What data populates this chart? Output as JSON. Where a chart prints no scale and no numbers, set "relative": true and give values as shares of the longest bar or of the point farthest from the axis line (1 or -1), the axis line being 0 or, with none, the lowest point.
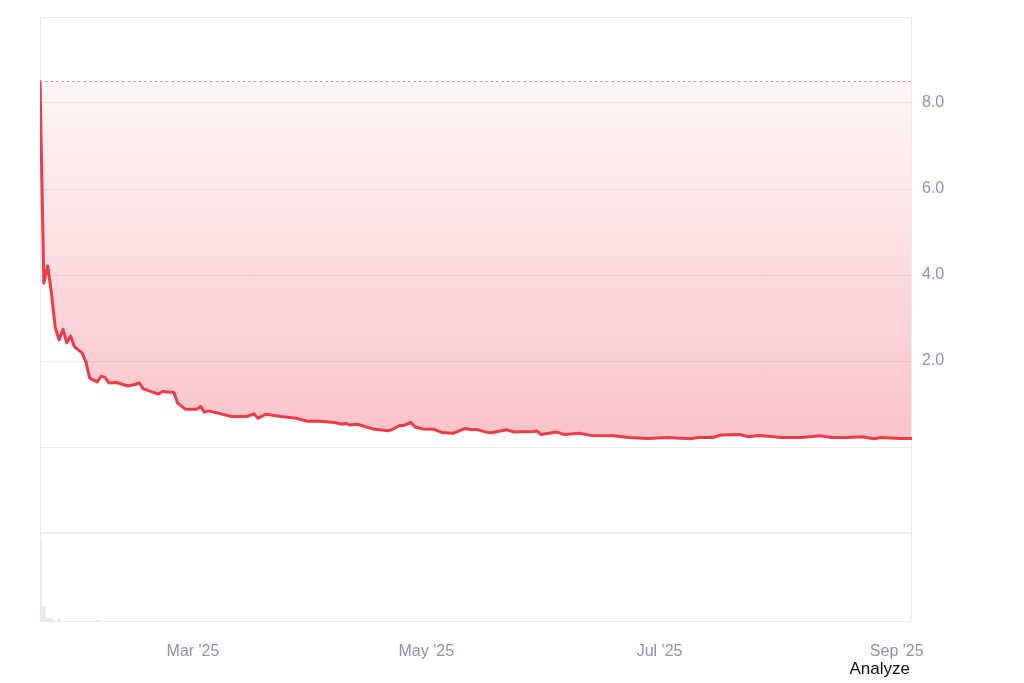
{
  "chart_data": [
    {
      "type": "line",
      "xlim": [
        "2025-01-20",
        "2025-09-05"
      ],
      "ylim": [
        -2,
        10
      ],
      "yticks": [
        {
          "value": 0,
          "label": null
        },
        {
          "value": 2,
          "label": "2.0"
        },
        {
          "value": 4,
          "label": "4.0"
        },
        {
          "value": 6,
          "label": "6.0"
        },
        {
          "value": 8,
          "label": "8.0"
        }
      ],
      "tick_labels": "y",
      "grid": "y",
      "x": [
        "2025-01-20",
        "2025-01-21",
        "2025-01-22",
        "2025-01-23",
        "2025-01-24",
        "2025-01-25",
        "2025-01-26",
        "2025-01-27",
        "2025-01-28",
        "2025-01-29",
        "2025-01-31",
        "2025-02-01",
        "2025-02-02",
        "2025-02-04",
        "2025-02-05",
        "2025-02-06",
        "2025-02-07",
        "2025-02-09",
        "2025-02-12",
        "2025-02-14",
        "2025-02-15",
        "2025-02-16",
        "2025-02-20",
        "2025-02-21",
        "2025-02-24",
        "2025-02-25",
        "2025-02-27",
        "2025-03-02",
        "2025-03-03",
        "2025-03-04",
        "2025-03-05",
        "2025-03-08",
        "2025-03-11",
        "2025-03-15",
        "2025-03-17",
        "2025-03-18",
        "2025-03-20",
        "2025-03-24",
        "2025-03-28",
        "2025-03-31",
        "2025-04-03",
        "2025-04-07",
        "2025-04-09",
        "2025-04-10",
        "2025-04-11",
        "2025-04-13",
        "2025-04-17",
        "2025-04-21",
        "2025-04-22",
        "2025-04-24",
        "2025-04-25",
        "2025-04-27",
        "2025-04-28",
        "2025-04-30",
        "2025-05-03",
        "2025-05-05",
        "2025-05-08",
        "2025-05-09",
        "2025-05-11",
        "2025-05-13",
        "2025-05-14",
        "2025-05-17",
        "2025-05-18",
        "2025-05-22",
        "2025-05-24",
        "2025-05-29",
        "2025-05-30",
        "2025-05-31",
        "2025-06-04",
        "2025-06-06",
        "2025-06-10",
        "2025-06-13",
        "2025-06-19",
        "2025-06-23",
        "2025-06-28",
        "2025-07-03",
        "2025-07-09",
        "2025-07-11",
        "2025-07-15",
        "2025-07-17",
        "2025-07-22",
        "2025-07-24",
        "2025-07-27",
        "2025-08-02",
        "2025-08-07",
        "2025-08-12",
        "2025-08-15",
        "2025-08-19",
        "2025-08-23",
        "2025-08-26",
        "2025-08-28",
        "2025-09-02",
        "2025-09-05"
      ],
      "series": [
        {
          "color": "#ef3a4a",
          "values": [
            8.5,
            3.81,
            4.21,
            3.58,
            2.77,
            2.49,
            2.74,
            2.42,
            2.58,
            2.33,
            2.19,
            1.98,
            1.6,
            1.51,
            1.65,
            1.62,
            1.49,
            1.5,
            1.42,
            1.46,
            1.49,
            1.35,
            1.23,
            1.29,
            1.27,
            1.02,
            0.88,
            0.88,
            0.94,
            0.81,
            0.84,
            0.78,
            0.71,
            0.71,
            0.77,
            0.67,
            0.76,
            0.71,
            0.67,
            0.6,
            0.6,
            0.57,
            0.53,
            0.55,
            0.51,
            0.53,
            0.42,
            0.38,
            0.4,
            0.5,
            0.5,
            0.57,
            0.47,
            0.42,
            0.41,
            0.34,
            0.32,
            0.35,
            0.43,
            0.4,
            0.41,
            0.34,
            0.33,
            0.4,
            0.35,
            0.36,
            0.37,
            0.29,
            0.35,
            0.29,
            0.32,
            0.27,
            0.26,
            0.22,
            0.2,
            0.22,
            0.19,
            0.22,
            0.22,
            0.28,
            0.29,
            0.24,
            0.27,
            0.22,
            0.22,
            0.26,
            0.22,
            0.22,
            0.24,
            0.19,
            0.22,
            0.2,
            0.2
          ],
          "lower": [
            8.5,
            3.81,
            4.21,
            3.58,
            2.77,
            2.49,
            2.74,
            2.42,
            2.58,
            2.33,
            2.19,
            1.98,
            1.6,
            1.51,
            1.65,
            1.62,
            1.49,
            1.5,
            1.42,
            1.46,
            1.49,
            1.35,
            1.23,
            1.29,
            1.27,
            1.02,
            0.88,
            0.88,
            0.94,
            0.81,
            0.84,
            0.78,
            0.71,
            0.71,
            0.77,
            0.67,
            0.76,
            0.71,
            0.67,
            0.6,
            0.6,
            0.57,
            0.53,
            0.55,
            0.51,
            0.53,
            0.42,
            0.38,
            0.4,
            0.5,
            0.5,
            0.57,
            0.47,
            0.42,
            0.41,
            0.34,
            0.32,
            0.35,
            0.43,
            0.4,
            0.41,
            0.34,
            0.33,
            0.4,
            0.35,
            0.36,
            0.37,
            0.29,
            0.35,
            0.29,
            0.32,
            0.27,
            0.26,
            0.22,
            0.2,
            0.22,
            0.19,
            0.22,
            0.22,
            0.28,
            0.29,
            0.24,
            0.27,
            0.22,
            0.22,
            0.26,
            0.22,
            0.22,
            0.24,
            0.19,
            0.22,
            0.2,
            0.2
          ],
          "upper": [
            8.5,
            8.5,
            8.5,
            8.5,
            8.5,
            8.5,
            8.5,
            8.5,
            8.5,
            8.5,
            8.5,
            8.5,
            8.5,
            8.5,
            8.5,
            8.5,
            8.5,
            8.5,
            8.5,
            8.5,
            8.5,
            8.5,
            8.5,
            8.5,
            8.5,
            8.5,
            8.5,
            8.5,
            8.5,
            8.5,
            8.5,
            8.5,
            8.5,
            8.5,
            8.5,
            8.5,
            8.5,
            8.5,
            8.5,
            8.5,
            8.5,
            8.5,
            8.5,
            8.5,
            8.5,
            8.5,
            8.5,
            8.5,
            8.5,
            8.5,
            8.5,
            8.5,
            8.5,
            8.5,
            8.5,
            8.5,
            8.5,
            8.5,
            8.5,
            8.5,
            8.5,
            8.5,
            8.5,
            8.5,
            8.5,
            8.5,
            8.5,
            8.5,
            8.5,
            8.5,
            8.5,
            8.5,
            8.5,
            8.5,
            8.5,
            8.5,
            8.5,
            8.5,
            8.5,
            8.5,
            8.5,
            8.5,
            8.5,
            8.5,
            8.5,
            8.5,
            8.5,
            8.5,
            8.5,
            8.5,
            8.5,
            8.5,
            8.5
          ]
        }
      ],
      "ref_lines": [
        {
          "axis": "y",
          "value": 8.5,
          "color": "#9e9e9e",
          "line_style": "dotted"
        }
      ]
    },
    {
      "type": "bar",
      "relative": true,
      "xlim": [
        "2025-01-20",
        "2025-09-05"
      ],
      "xticks": [
        {
          "value": "2025-03-01",
          "label": "Mar '25"
        },
        {
          "value": "2025-05-01",
          "label": "May '25"
        },
        {
          "value": "2025-07-01",
          "label": "Jul '25"
        },
        {
          "value": "2025-09-01",
          "label": "Sep '25"
        }
      ],
      "tick_labels": "x",
      "color": "#e4e7f0",
      "x": [
        "2025-01-20",
        "2025-01-21",
        "2025-01-22",
        "2025-01-23",
        "2025-01-25",
        "2025-02-04"
      ],
      "values": [
        1,
        0.19,
        0.05,
        0.04,
        0.03,
        0.02
      ],
      "annotations": [
        "Analyze"
      ]
    }
  ]
}
